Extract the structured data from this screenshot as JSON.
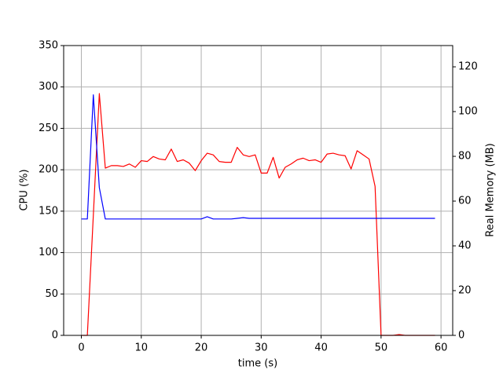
{
  "chart_data": {
    "type": "line",
    "xlabel": "time (s)",
    "ylabel": "CPU (%)",
    "y2label": "Real Memory (MB)",
    "x": [
      0,
      1,
      2,
      3,
      4,
      5,
      6,
      7,
      8,
      9,
      10,
      11,
      12,
      13,
      14,
      15,
      16,
      17,
      18,
      19,
      20,
      21,
      22,
      23,
      24,
      25,
      26,
      27,
      28,
      29,
      30,
      31,
      32,
      33,
      34,
      35,
      36,
      37,
      38,
      39,
      40,
      41,
      42,
      43,
      44,
      45,
      46,
      47,
      48,
      49,
      50,
      51,
      52,
      53,
      54,
      55,
      56,
      57,
      58,
      59
    ],
    "series": [
      {
        "name": "CPU (%)",
        "color": "#ff0000",
        "axis": "y",
        "values": [
          0,
          0,
          145,
          292,
          202,
          205,
          205,
          204,
          207,
          203,
          211,
          210,
          216,
          213,
          212,
          225,
          210,
          212,
          208,
          199,
          211,
          220,
          218,
          210,
          209,
          209,
          227,
          218,
          216,
          218,
          196,
          196,
          215,
          190,
          203,
          207,
          212,
          214,
          211,
          212,
          209,
          219,
          220,
          218,
          217,
          201,
          223,
          218,
          213,
          180,
          0,
          0,
          0,
          1,
          0,
          0,
          0,
          0,
          0,
          0
        ]
      },
      {
        "name": "Real Memory (MB)",
        "color": "#0000ff",
        "axis": "y2",
        "values": [
          52,
          52,
          107.5,
          66,
          52,
          52,
          52,
          52,
          52,
          52,
          52,
          52,
          52,
          52,
          52,
          52,
          52,
          52,
          52,
          52,
          52,
          53,
          52,
          52,
          52,
          52,
          52.3,
          52.6,
          52.3,
          52.3,
          52.3,
          52.3,
          52.3,
          52.3,
          52.3,
          52.3,
          52.3,
          52.3,
          52.3,
          52.3,
          52.3,
          52.3,
          52.3,
          52.3,
          52.3,
          52.3,
          52.3,
          52.3,
          52.3,
          52.3,
          52.3,
          52.3,
          52.3,
          52.3,
          52.3,
          52.3,
          52.3,
          52.3,
          52.3,
          52.3
        ]
      }
    ],
    "xlim": [
      -2.95,
      61.95
    ],
    "xticks": [
      0,
      10,
      20,
      30,
      40,
      50,
      60
    ],
    "ylim": [
      0,
      350
    ],
    "yticks": [
      0,
      50,
      100,
      150,
      200,
      250,
      300,
      350
    ],
    "y2lim": [
      0,
      129.5
    ],
    "y2ticks": [
      0,
      20,
      40,
      60,
      80,
      100,
      120
    ],
    "grid": true
  }
}
